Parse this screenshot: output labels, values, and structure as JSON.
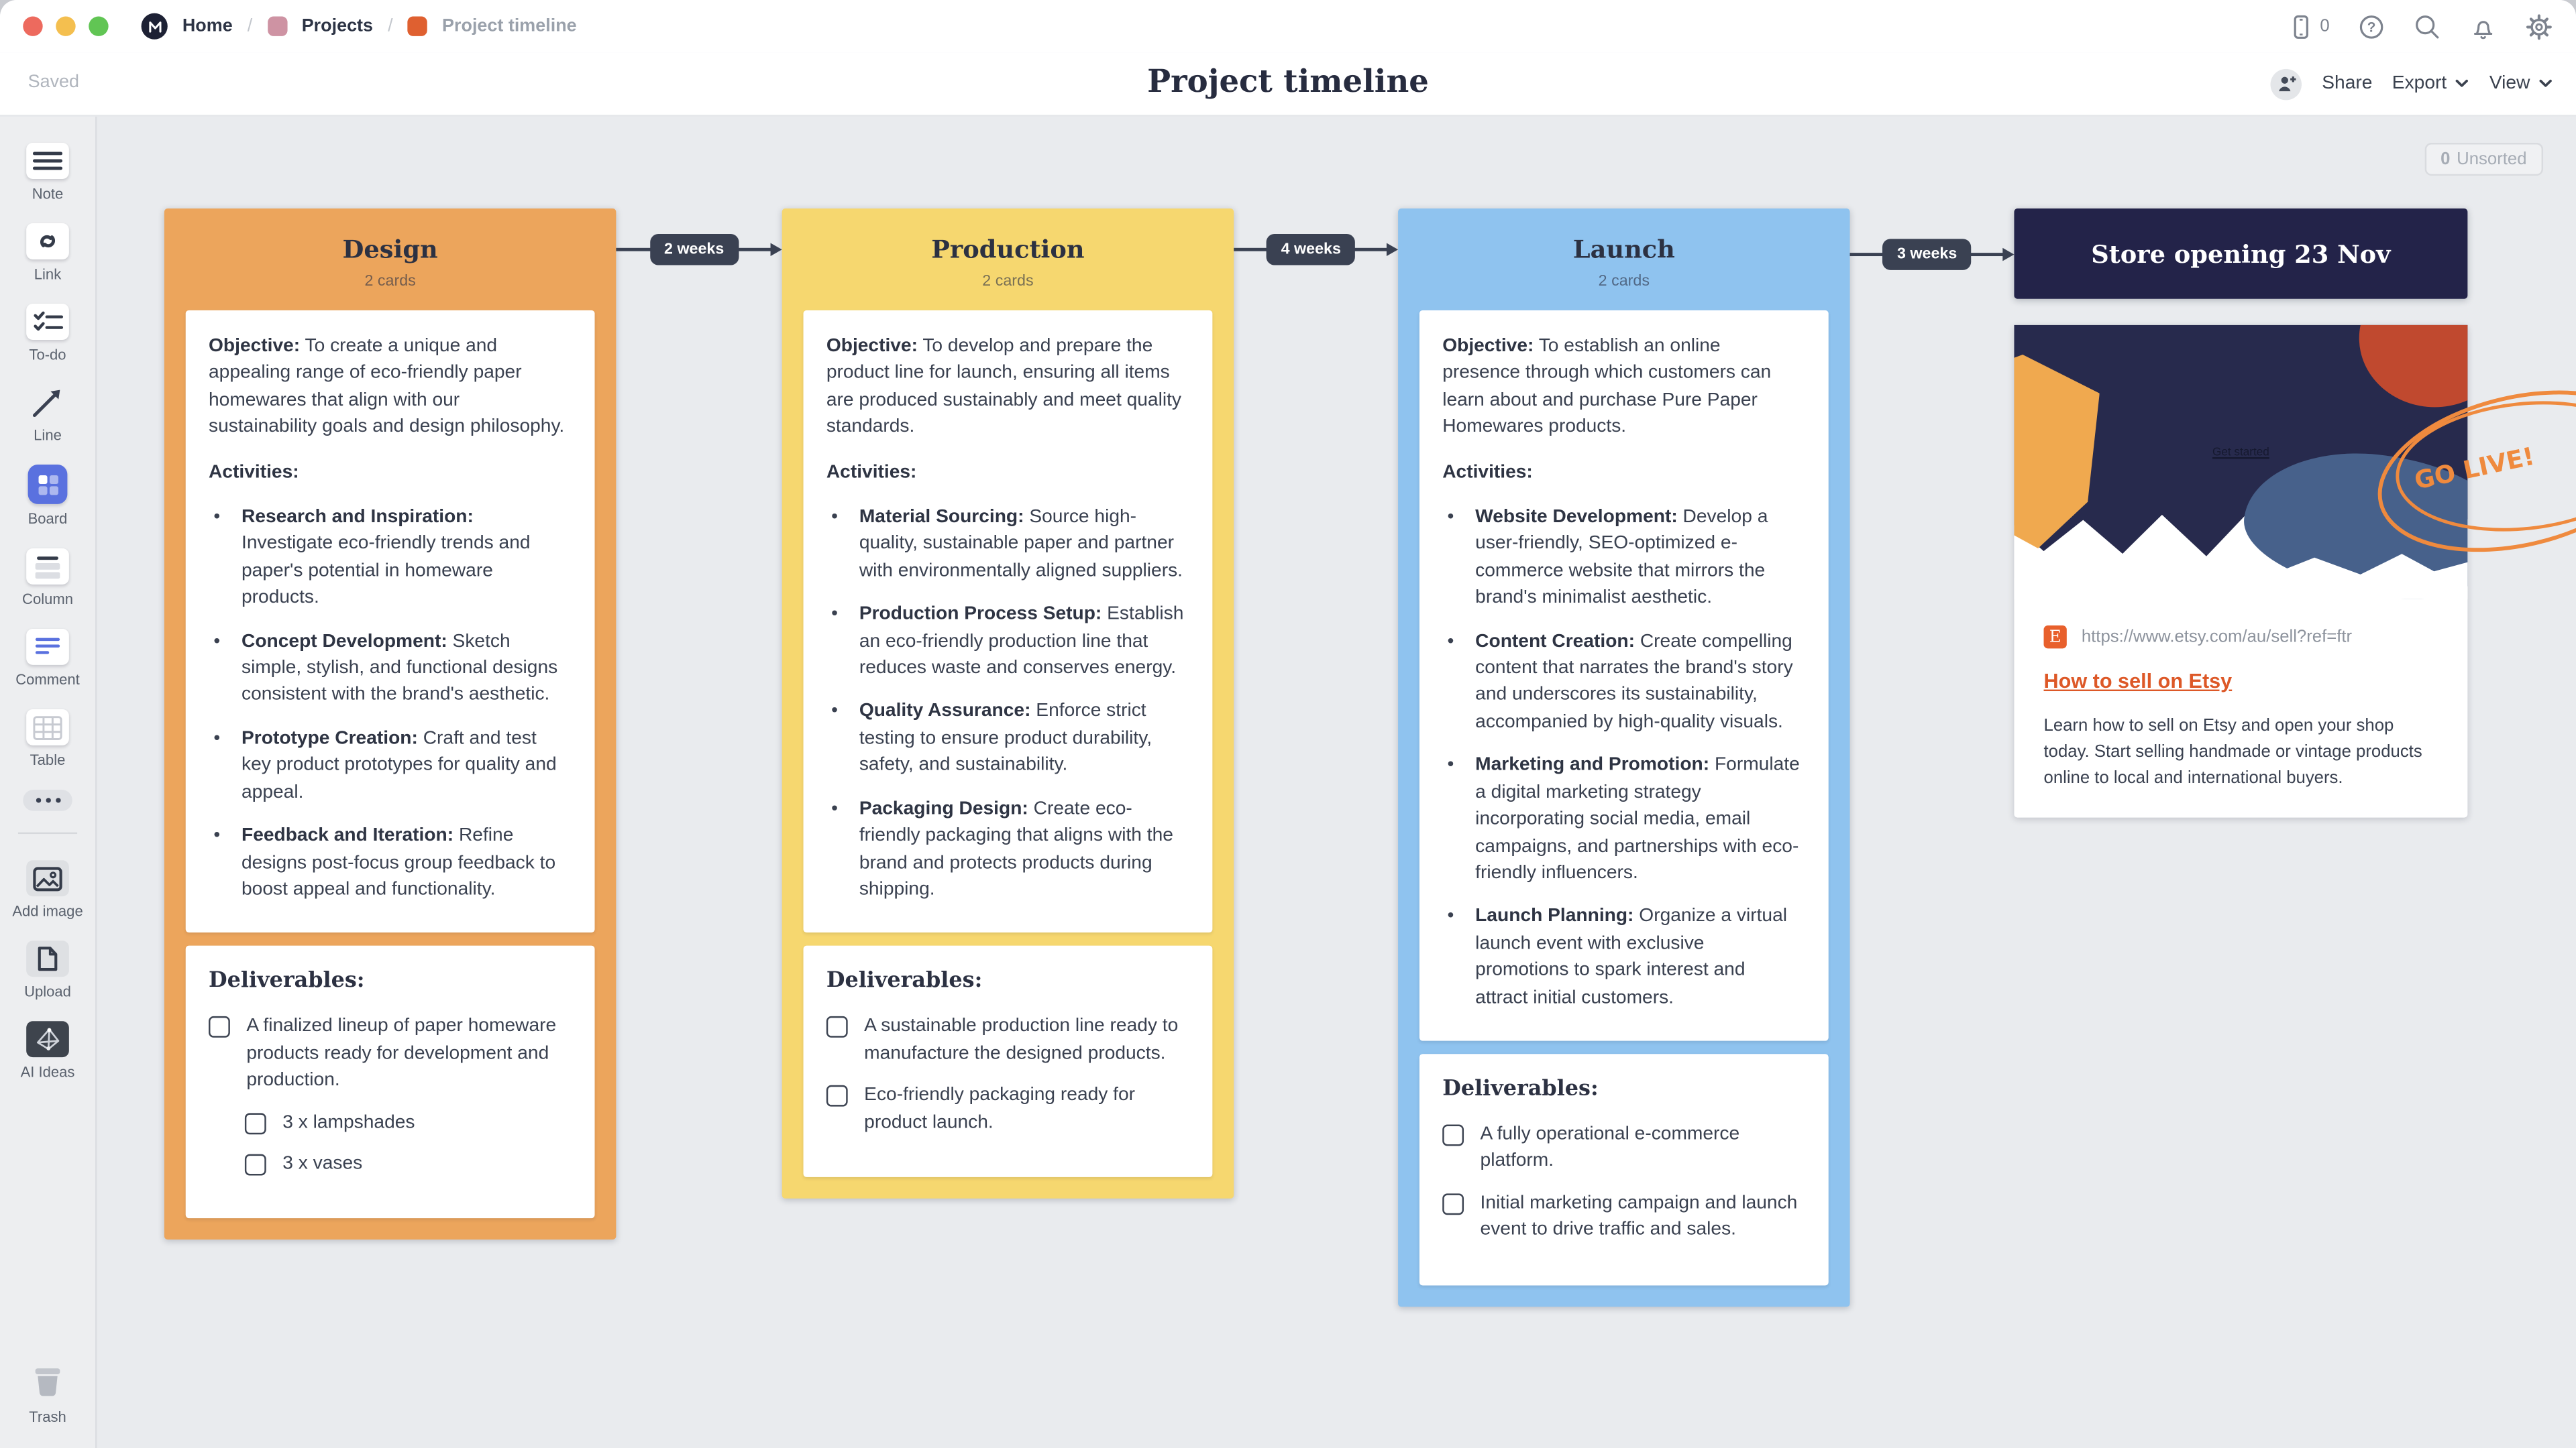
{
  "topbar": {
    "breadcrumb": [
      {
        "label": "Home",
        "icon": "milanote-logo"
      },
      {
        "label": "Projects",
        "icon": "pink-board-icon"
      },
      {
        "label": "Project timeline",
        "icon": "orange-board-icon"
      }
    ],
    "separator": "/",
    "device_count": "0"
  },
  "titlebar": {
    "saved": "Saved",
    "title": "Project timeline",
    "share_label": "Share",
    "export_label": "Export",
    "view_label": "View"
  },
  "sidebar": {
    "tools": [
      {
        "name": "note",
        "label": "Note"
      },
      {
        "name": "link",
        "label": "Link"
      },
      {
        "name": "todo",
        "label": "To-do"
      },
      {
        "name": "line",
        "label": "Line"
      },
      {
        "name": "board",
        "label": "Board"
      },
      {
        "name": "column",
        "label": "Column"
      },
      {
        "name": "comment",
        "label": "Comment"
      },
      {
        "name": "table",
        "label": "Table"
      },
      {
        "name": "more",
        "label": ""
      }
    ],
    "media": [
      {
        "name": "add-image",
        "label": "Add image"
      },
      {
        "name": "upload",
        "label": "Upload"
      },
      {
        "name": "ai-ideas",
        "label": "AI Ideas"
      }
    ],
    "trash_label": "Trash"
  },
  "canvas": {
    "unsorted": {
      "count": "0",
      "label": "Unsorted"
    },
    "arrows": [
      {
        "label": "2 weeks"
      },
      {
        "label": "4 weeks"
      },
      {
        "label": "3 weeks"
      }
    ],
    "columns": [
      {
        "title": "Design",
        "subtitle": "2 cards",
        "color": "#ECA55C",
        "objective_label": "Objective:",
        "objective": "To create a unique and appealing range of eco-friendly paper homewares that align with our sustainability goals and design philosophy.",
        "activities_label": "Activities:",
        "activities": [
          {
            "label": "Research and Inspiration:",
            "text": "Investigate eco-friendly trends and paper's potential in homeware products."
          },
          {
            "label": "Concept Development:",
            "text": "Sketch simple, stylish, and functional designs consistent with the brand's aesthetic."
          },
          {
            "label": "Prototype Creation:",
            "text": "Craft and test key product prototypes for quality and appeal."
          },
          {
            "label": "Feedback and Iteration:",
            "text": "Refine designs post-focus group feedback to boost appeal and functionality."
          }
        ],
        "deliverables_label": "Deliverables:",
        "deliverables": [
          {
            "text": "A finalized lineup of paper homeware products ready for development and production.",
            "checked": false,
            "subitems": [
              {
                "text": "3 x lampshades",
                "checked": false
              },
              {
                "text": "3 x vases",
                "checked": false
              }
            ]
          }
        ]
      },
      {
        "title": "Production",
        "subtitle": "2 cards",
        "color": "#F6D76F",
        "objective_label": "Objective:",
        "objective": "To develop and prepare the product line for launch, ensuring all items are produced sustainably and meet quality standards.",
        "activities_label": "Activities:",
        "activities": [
          {
            "label": "Material Sourcing:",
            "text": "Source high-quality, sustainable paper and partner with environmentally aligned suppliers."
          },
          {
            "label": "Production Process Setup:",
            "text": "Establish an eco-friendly production line that reduces waste and conserves energy."
          },
          {
            "label": "Quality Assurance:",
            "text": "Enforce strict testing to ensure product durability, safety, and sustainability."
          },
          {
            "label": "Packaging Design:",
            "text": "Create eco-friendly packaging that aligns with the brand and protects products during shipping."
          }
        ],
        "deliverables_label": "Deliverables:",
        "deliverables": [
          {
            "text": "A sustainable production line ready to manufacture the designed products.",
            "checked": false,
            "subitems": []
          },
          {
            "text": "Eco-friendly packaging ready for product launch.",
            "checked": false,
            "subitems": []
          }
        ]
      },
      {
        "title": "Launch",
        "subtitle": "2 cards",
        "color": "#8FC3EF",
        "objective_label": "Objective:",
        "objective": "To establish an online presence through which customers can learn about and purchase Pure Paper Homewares products.",
        "activities_label": "Activities:",
        "activities": [
          {
            "label": "Website Development:",
            "text": "Develop a user-friendly, SEO-optimized e-commerce website that mirrors the brand's minimalist aesthetic."
          },
          {
            "label": "Content Creation:",
            "text": "Create compelling content that narrates the brand's story and underscores its sustainability, accompanied by high-quality visuals."
          },
          {
            "label": "Marketing and Promotion:",
            "text": "Formulate a digital marketing strategy incorporating social media, email campaigns, and partnerships with eco-friendly influencers."
          },
          {
            "label": "Launch Planning:",
            "text": "Organize a virtual launch event with exclusive promotions to spark interest and attract initial customers."
          }
        ],
        "deliverables_label": "Deliverables:",
        "deliverables": [
          {
            "text": "A fully operational e-commerce platform.",
            "checked": false,
            "subitems": []
          },
          {
            "text": "Initial marketing campaign and launch event to drive traffic and sales.",
            "checked": false,
            "subitems": []
          }
        ]
      }
    ],
    "milestone": {
      "title": "Store opening 23 Nov",
      "color": "#232349"
    },
    "link_card": {
      "favicon_letter": "E",
      "url": "https://www.etsy.com/au/sell?ref=ftr",
      "title": "How to sell on Etsy",
      "description": "Learn how to sell on Etsy and open your shop today. Start selling handmade or vintage products online to local and international buyers.",
      "image_text": "Get started"
    },
    "annotation": {
      "text": "GO LIVE!",
      "color": "#EF8A3E"
    }
  }
}
